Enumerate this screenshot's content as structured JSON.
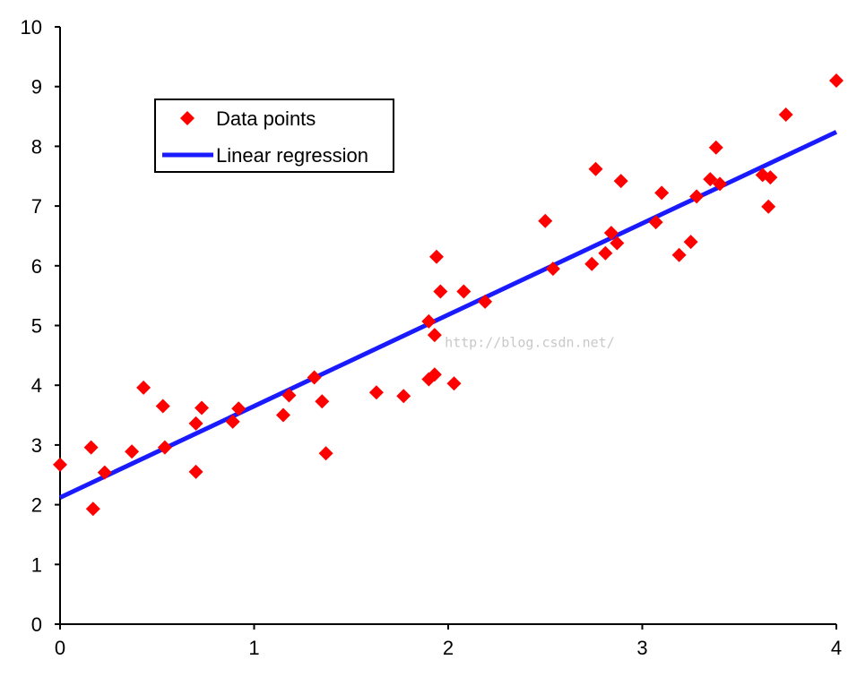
{
  "chart_data": {
    "type": "scatter",
    "title": "",
    "xlabel": "",
    "ylabel": "",
    "xlim": [
      0,
      4
    ],
    "ylim": [
      0,
      10
    ],
    "xticks": [
      0,
      1,
      2,
      3,
      4
    ],
    "yticks": [
      0,
      1,
      2,
      3,
      4,
      5,
      6,
      7,
      8,
      9,
      10
    ],
    "grid": false,
    "legend_position": "top-left",
    "legend": {
      "points_label": "Data points",
      "line_label": "Linear regression"
    },
    "colors": {
      "points": "#ff0000",
      "line": "#1a1aff",
      "axis": "#000000"
    },
    "series": [
      {
        "name": "Data points",
        "type": "scatter",
        "marker": "diamond",
        "x": [
          0.0,
          0.17,
          0.16,
          0.23,
          0.37,
          0.43,
          0.53,
          0.54,
          0.7,
          0.7,
          0.73,
          0.89,
          0.92,
          1.15,
          1.18,
          1.31,
          1.35,
          1.37,
          1.63,
          1.77,
          1.9,
          1.9,
          1.93,
          1.93,
          1.94,
          1.96,
          2.03,
          2.08,
          2.19,
          2.5,
          2.54,
          2.74,
          2.76,
          2.81,
          2.84,
          2.87,
          2.89,
          3.07,
          3.1,
          3.19,
          3.25,
          3.28,
          3.35,
          3.38,
          3.4,
          3.62,
          3.65,
          3.66,
          3.74,
          4.0
        ],
        "y": [
          2.67,
          1.93,
          2.96,
          2.54,
          2.89,
          3.96,
          3.65,
          2.96,
          2.55,
          3.36,
          3.62,
          3.39,
          3.61,
          3.5,
          3.83,
          4.13,
          3.73,
          2.86,
          3.88,
          3.82,
          4.1,
          5.07,
          4.84,
          4.18,
          6.15,
          5.57,
          4.03,
          5.57,
          5.4,
          6.75,
          5.95,
          6.03,
          7.62,
          6.21,
          6.55,
          6.38,
          7.42,
          6.73,
          7.22,
          6.18,
          6.4,
          7.16,
          7.45,
          7.98,
          7.37,
          7.52,
          6.99,
          7.48,
          8.53,
          9.1
        ]
      },
      {
        "name": "Linear regression",
        "type": "line",
        "x": [
          0,
          4
        ],
        "y": [
          2.12,
          8.24
        ]
      }
    ],
    "annotations": [
      {
        "text": "http://blog.csdn.net/",
        "kind": "watermark",
        "x": 2.42,
        "y": 4.64
      }
    ]
  }
}
